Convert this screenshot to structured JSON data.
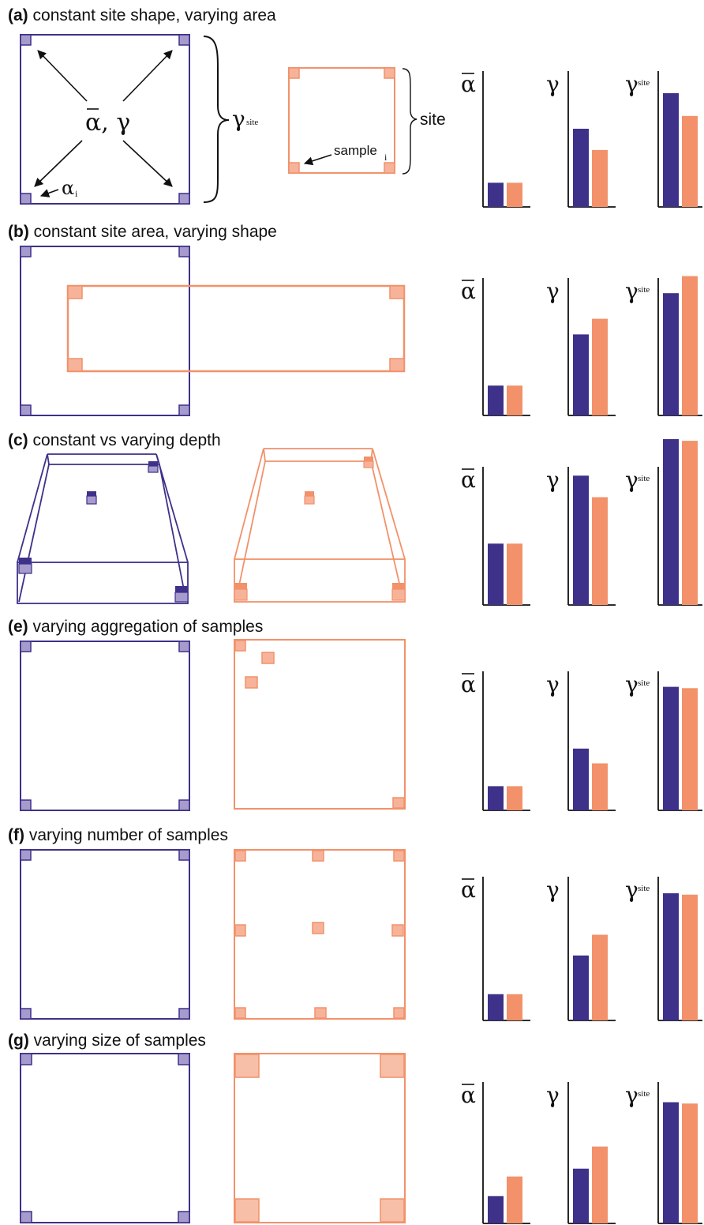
{
  "colors": {
    "purple": "#3d3189",
    "purple_sample": "#a69bcc",
    "orange": "#f2916a",
    "orange_sample": "#f6b39a",
    "orange_sample_large": "#f7bfa7"
  },
  "symbols": {
    "alpha_bar": "α",
    "alpha_i": "α",
    "alpha_i_sub": "i",
    "gamma": "γ",
    "gamma_site": "γ",
    "gamma_site_sub": "site",
    "alpha_gamma": "α, γ",
    "site": "site",
    "sample": "sample",
    "sample_sub": "i"
  },
  "panels": [
    {
      "label": "(a)",
      "title": "constant site shape, varying area"
    },
    {
      "label": "(b)",
      "title": "constant site area, varying shape"
    },
    {
      "label": "(c)",
      "title": "constant vs varying depth"
    },
    {
      "label": "(e)",
      "title": "varying aggregation of samples"
    },
    {
      "label": "(f)",
      "title": "varying number of samples"
    },
    {
      "label": "(g)",
      "title": "varying size of samples"
    }
  ],
  "chart_data": [
    {
      "panel": "(a)",
      "type": "bar",
      "series": [
        {
          "values": [
            0.17,
            0.17
          ]
        },
        {
          "values": [
            0.55,
            0.4
          ]
        },
        {
          "values": [
            0.8,
            0.64
          ]
        }
      ]
    },
    {
      "panel": "(b)",
      "type": "bar",
      "series": [
        {
          "values": [
            0.21,
            0.21
          ]
        },
        {
          "values": [
            0.57,
            0.68
          ]
        },
        {
          "values": [
            0.86,
            0.98
          ]
        }
      ]
    },
    {
      "panel": "(c)",
      "type": "bar",
      "series": [
        {
          "values": [
            0.37,
            0.37
          ]
        },
        {
          "values": [
            0.78,
            0.65
          ]
        },
        {
          "values": [
            1.0,
            0.99
          ]
        }
      ]
    },
    {
      "panel": "(e)",
      "type": "bar",
      "series": [
        {
          "values": [
            0.18,
            0.18
          ]
        },
        {
          "values": [
            0.46,
            0.35
          ]
        },
        {
          "values": [
            0.92,
            0.91
          ]
        }
      ]
    },
    {
      "panel": "(f)",
      "type": "bar",
      "series": [
        {
          "values": [
            0.19,
            0.19
          ]
        },
        {
          "values": [
            0.47,
            0.62
          ]
        },
        {
          "values": [
            0.92,
            0.91
          ]
        }
      ]
    },
    {
      "panel": "(g)",
      "type": "bar",
      "series": [
        {
          "values": [
            0.21,
            0.36
          ]
        },
        {
          "values": [
            0.42,
            0.59
          ]
        },
        {
          "values": [
            0.93,
            0.92
          ]
        }
      ]
    }
  ]
}
